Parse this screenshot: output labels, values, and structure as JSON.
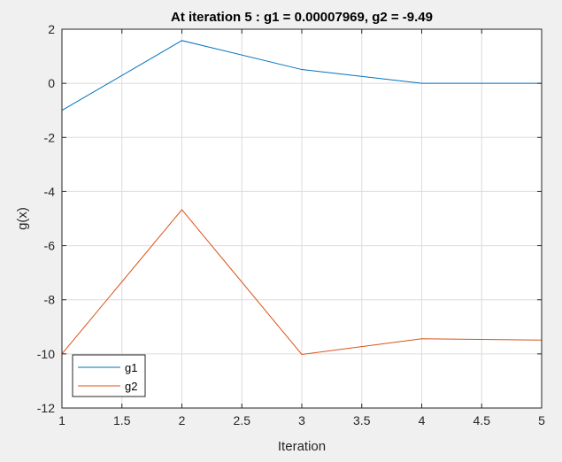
{
  "chart_data": {
    "type": "line",
    "title": "At iteration 5 : g1 = 0.00007969, g2 = -9.49",
    "xlabel": "Iteration",
    "ylabel": "g(x)",
    "xlim": [
      1,
      5
    ],
    "ylim": [
      -12,
      2
    ],
    "xticks": [
      1,
      1.5,
      2,
      2.5,
      3,
      3.5,
      4,
      4.5,
      5
    ],
    "yticks": [
      -12,
      -10,
      -8,
      -6,
      -4,
      -2,
      0,
      2
    ],
    "grid": true,
    "legend_location": "bottom-left",
    "x": [
      1,
      2,
      3,
      4,
      5
    ],
    "series": [
      {
        "name": "g1",
        "color": "#0072bd",
        "values": [
          -1.0,
          1.58,
          0.51,
          0.0,
          7.969e-05
        ]
      },
      {
        "name": "g2",
        "color": "#d95319",
        "values": [
          -10.0,
          -4.67,
          -10.02,
          -9.44,
          -9.49
        ]
      }
    ]
  }
}
